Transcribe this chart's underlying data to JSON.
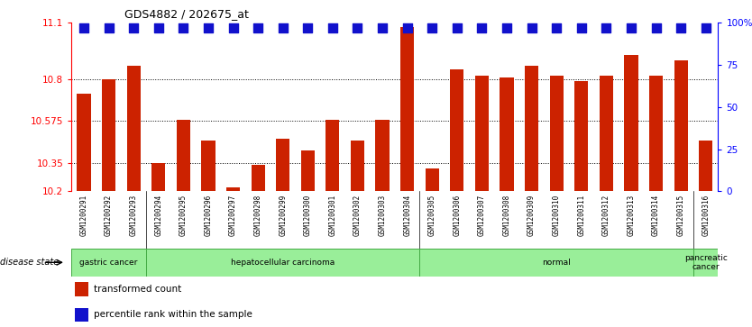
{
  "title": "GDS4882 / 202675_at",
  "samples": [
    "GSM1200291",
    "GSM1200292",
    "GSM1200293",
    "GSM1200294",
    "GSM1200295",
    "GSM1200296",
    "GSM1200297",
    "GSM1200298",
    "GSM1200299",
    "GSM1200300",
    "GSM1200301",
    "GSM1200302",
    "GSM1200303",
    "GSM1200304",
    "GSM1200305",
    "GSM1200306",
    "GSM1200307",
    "GSM1200308",
    "GSM1200309",
    "GSM1200310",
    "GSM1200311",
    "GSM1200312",
    "GSM1200313",
    "GSM1200314",
    "GSM1200315",
    "GSM1200316"
  ],
  "transformed_counts": [
    10.72,
    10.8,
    10.87,
    10.35,
    10.58,
    10.47,
    10.22,
    10.34,
    10.48,
    10.42,
    10.58,
    10.47,
    10.58,
    11.08,
    10.32,
    10.85,
    10.82,
    10.81,
    10.87,
    10.82,
    10.79,
    10.82,
    10.93,
    10.82,
    10.9,
    10.47
  ],
  "percentile_values": [
    97,
    97,
    97,
    97,
    97,
    97,
    97,
    97,
    97,
    97,
    97,
    97,
    97,
    97,
    97,
    97,
    97,
    97,
    97,
    97,
    97,
    97,
    97,
    97,
    97,
    97
  ],
  "disease_groups": [
    {
      "label": "gastric cancer",
      "start": 0,
      "end": 3
    },
    {
      "label": "hepatocellular carcinoma",
      "start": 3,
      "end": 14
    },
    {
      "label": "normal",
      "start": 14,
      "end": 25
    },
    {
      "label": "pancreatic\ncancer",
      "start": 25,
      "end": 26
    }
  ],
  "ylim_left": [
    10.2,
    11.1
  ],
  "ylim_right": [
    0,
    100
  ],
  "yticks_left": [
    10.2,
    10.35,
    10.575,
    10.8,
    11.1
  ],
  "yticks_left_labels": [
    "10.2",
    "10.35",
    "10.575",
    "10.8",
    "11.1"
  ],
  "yticks_right": [
    0,
    25,
    50,
    75,
    100
  ],
  "yticks_right_labels": [
    "0",
    "25",
    "50",
    "75",
    "100%"
  ],
  "bar_color": "#cc2200",
  "dot_color": "#1111cc",
  "bar_width": 0.55,
  "dot_size": 45,
  "bg_color": "#ffffff",
  "grid_color": "#000000",
  "xticklabel_bg": "#cccccc",
  "group_fill_color": "#99ee99",
  "group_edge_color": "#44aa44"
}
